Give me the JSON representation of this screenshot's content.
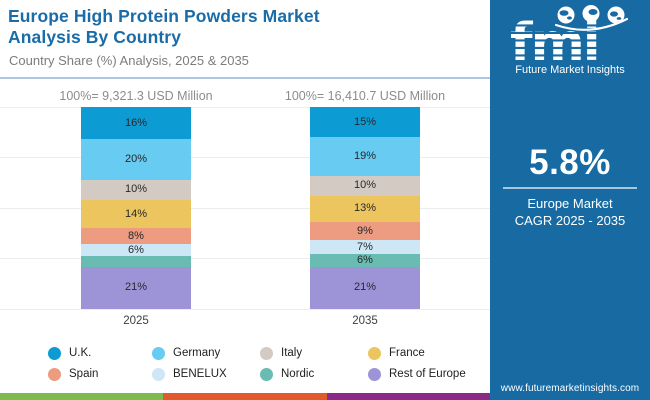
{
  "header": {
    "title": "Europe High Protein Powders Market Analysis By Country",
    "subtitle": "Country Share (%) Analysis, 2025 & 2035",
    "title_color": "#1a6ca9"
  },
  "chart_data": {
    "type": "bar",
    "stacked": true,
    "title": "Europe High Protein Powders Market Analysis By Country",
    "subtitle": "Country Share (%) Analysis, 2025 & 2035",
    "categories": [
      "2025",
      "2035"
    ],
    "totals": [
      "100%= 9,321.3 USD Million",
      "100%= 16,410.7 USD Million"
    ],
    "totals_usd_million": [
      9321.3,
      16410.7
    ],
    "ylim": [
      0,
      100
    ],
    "grid": true,
    "legend_position": "bottom",
    "series": [
      {
        "name": "U.K.",
        "color": "#0d9bd4",
        "values": [
          16,
          15
        ],
        "labels": [
          "16%",
          "15%"
        ]
      },
      {
        "name": "Germany",
        "color": "#68cbf1",
        "values": [
          20,
          19
        ],
        "labels": [
          "20%",
          "19%"
        ]
      },
      {
        "name": "Italy",
        "color": "#d3cac4",
        "values": [
          10,
          10
        ],
        "labels": [
          "10%",
          "10%"
        ]
      },
      {
        "name": "France",
        "color": "#ecc55e",
        "values": [
          14,
          13
        ],
        "labels": [
          "14%",
          "13%"
        ]
      },
      {
        "name": "Spain",
        "color": "#ed9b81",
        "values": [
          8,
          9
        ],
        "labels": [
          "8%",
          "9%"
        ]
      },
      {
        "name": "BENELUX",
        "color": "#cde7f7",
        "values": [
          6,
          7
        ],
        "labels": [
          "6%",
          "7%"
        ]
      },
      {
        "name": "Nordic",
        "color": "#69bcb1",
        "values": [
          5,
          6
        ],
        "labels": [
          "",
          "6%"
        ]
      },
      {
        "name": "Rest of Europe",
        "color": "#9d94d8",
        "values": [
          21,
          21
        ],
        "labels": [
          "21%",
          "21%"
        ]
      }
    ]
  },
  "panel": {
    "bg_color": "#176aa2",
    "logo": {
      "brand": "fmi",
      "tagline": "Future Market Insights"
    },
    "cagr_value": "5.8%",
    "cagr_label_line1": "Europe Market",
    "cagr_label_line2": "CAGR 2025 - 2035",
    "website": "www.futuremarketinsights.com"
  },
  "footer_bar_colors": [
    "#80ba4d",
    "#e2592a",
    "#8c2b87"
  ]
}
